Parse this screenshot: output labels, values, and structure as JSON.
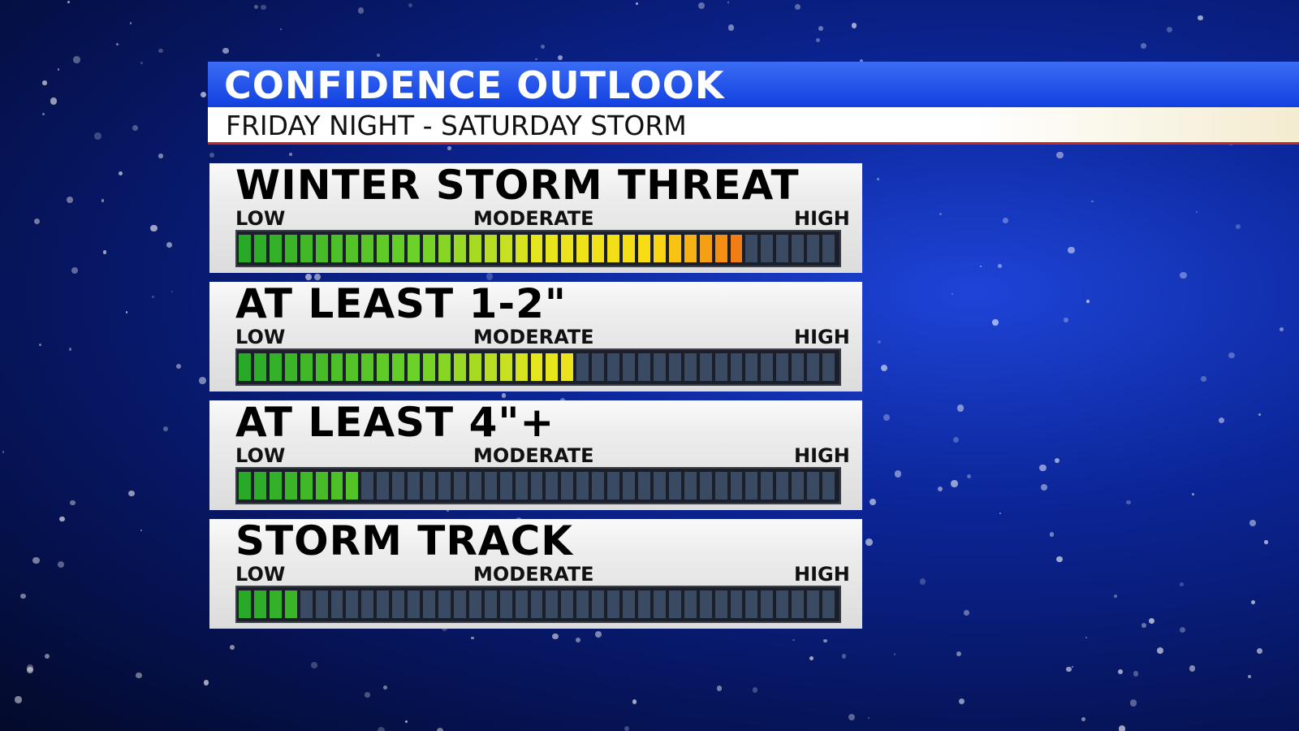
{
  "header": {
    "title": "CONFIDENCE OUTLOOK",
    "subtitle": "FRIDAY NIGHT - SATURDAY STORM"
  },
  "scale": {
    "low": "LOW",
    "moderate": "MODERATE",
    "high": "HIGH",
    "segments": 39
  },
  "panels": [
    {
      "title": "WINTER STORM THREAT",
      "level": 33
    },
    {
      "title": "AT LEAST 1-2\"",
      "level": 22
    },
    {
      "title": "AT LEAST 4\"+",
      "level": 8
    },
    {
      "title": "STORM TRACK",
      "level": 4
    }
  ]
}
